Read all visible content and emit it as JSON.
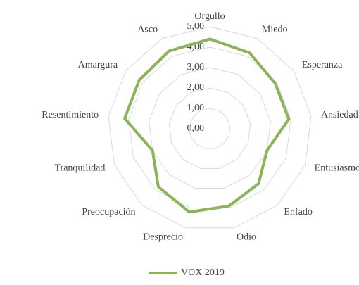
{
  "chart_data": {
    "type": "radar",
    "categories": [
      "Orgullo",
      "Miedo",
      "Esperanza",
      "Ansiedad",
      "Entusiasmo",
      "Enfado",
      "Odio",
      "Desprecio",
      "Preocupación",
      "Tranquilidad",
      "Resentimiento",
      "Amargura",
      "Asco"
    ],
    "series": [
      {
        "name": "VOX 2019",
        "color": "#8bb357",
        "values": [
          4.4,
          4.2,
          3.9,
          3.9,
          3.0,
          3.6,
          3.9,
          4.2,
          3.8,
          3.0,
          4.2,
          4.2,
          4.3
        ]
      }
    ],
    "ylim": [
      0,
      5
    ],
    "yticks": [
      {
        "value": 0,
        "label": "0,00"
      },
      {
        "value": 1,
        "label": "1,00"
      },
      {
        "value": 2,
        "label": "2,00"
      },
      {
        "value": 3,
        "label": "3,00"
      },
      {
        "value": 4,
        "label": "4,00"
      },
      {
        "value": 5,
        "label": "5,00"
      }
    ],
    "grid": true,
    "legend": "bottom"
  }
}
